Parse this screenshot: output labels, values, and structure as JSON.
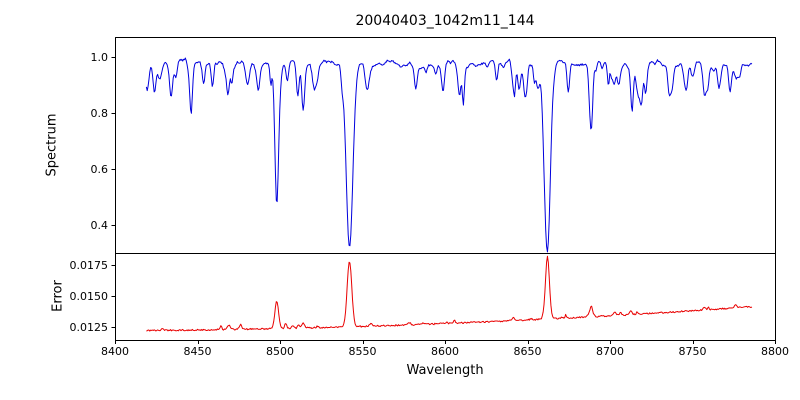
{
  "chart_data": {
    "type": "line",
    "title": "20040403_1042m11_144",
    "xlabel": "Wavelength",
    "xlim": [
      8400,
      8800
    ],
    "x_ticks": [
      {
        "value": 8400,
        "label": "8400"
      },
      {
        "value": 8450,
        "label": "8450"
      },
      {
        "value": 8500,
        "label": "8500"
      },
      {
        "value": 8550,
        "label": "8550"
      },
      {
        "value": 8600,
        "label": "8600"
      },
      {
        "value": 8650,
        "label": "8650"
      },
      {
        "value": 8700,
        "label": "8700"
      },
      {
        "value": 8750,
        "label": "8750"
      },
      {
        "value": 8800,
        "label": "8800"
      }
    ],
    "n_points": 700,
    "panels": [
      {
        "name": "spectrum",
        "ylabel": "Spectrum",
        "ylim": [
          0.3,
          1.072
        ],
        "y_ticks": [
          {
            "value": 1.0,
            "label": "1.0"
          },
          {
            "value": 0.8,
            "label": "0.8"
          },
          {
            "value": 0.6,
            "label": "0.6"
          },
          {
            "value": 0.4,
            "label": "0.4"
          }
        ],
        "color": "#0000dd",
        "x_range": [
          8419,
          8786
        ],
        "continuum": 0.978,
        "noise_fine": 0.013,
        "noise_slow": 0.012,
        "strong_lines": [
          {
            "center": 8498.0,
            "depth": 0.48,
            "width": 1.1
          },
          {
            "center": 8542.1,
            "depth": 0.665,
            "width": 2.0
          },
          {
            "center": 8662.1,
            "depth": 0.65,
            "width": 1.8
          },
          {
            "center": 8688.6,
            "depth": 0.235,
            "width": 0.9
          }
        ],
        "medium_lines": [
          {
            "center": 8434.0,
            "depth": 0.12,
            "width": 0.9
          },
          {
            "center": 8468.4,
            "depth": 0.1,
            "width": 0.9
          },
          {
            "center": 8514.1,
            "depth": 0.16,
            "width": 0.9
          },
          {
            "center": 8582.3,
            "depth": 0.09,
            "width": 0.9
          },
          {
            "center": 8598.8,
            "depth": 0.1,
            "width": 0.9
          },
          {
            "center": 8611.0,
            "depth": 0.08,
            "width": 0.8
          },
          {
            "center": 8648.5,
            "depth": 0.09,
            "width": 0.8
          },
          {
            "center": 8674.7,
            "depth": 0.11,
            "width": 0.8
          },
          {
            "center": 8713.2,
            "depth": 0.12,
            "width": 0.9
          },
          {
            "center": 8736.0,
            "depth": 0.1,
            "width": 0.9
          },
          {
            "center": 8757.0,
            "depth": 0.08,
            "width": 0.8
          },
          {
            "center": 8772.8,
            "depth": 0.09,
            "width": 0.8
          }
        ],
        "forest": {
          "count": 75,
          "depth_min": 0.01,
          "depth_max": 0.085,
          "width_min": 0.5,
          "width_max": 1.2,
          "seed": 12345
        }
      },
      {
        "name": "error",
        "ylabel": "Error",
        "ylim": [
          0.01145,
          0.01847
        ],
        "y_ticks": [
          {
            "value": 0.0175,
            "label": "0.0175"
          },
          {
            "value": 0.015,
            "label": "0.0150"
          },
          {
            "value": 0.0125,
            "label": "0.0125"
          }
        ],
        "color": "#e80000",
        "x_range": [
          8419,
          8786
        ],
        "baseline_start": 0.01222,
        "baseline_slope": 1e-06,
        "baseline_quad": 1.15e-08,
        "noise_fine": 6e-05,
        "peaks": [
          {
            "center": 8498.0,
            "height": 0.00225,
            "width": 1.1
          },
          {
            "center": 8542.1,
            "height": 0.0053,
            "width": 1.4
          },
          {
            "center": 8662.1,
            "height": 0.00505,
            "width": 1.2
          },
          {
            "center": 8688.6,
            "height": 0.00085,
            "width": 0.9
          },
          {
            "center": 8514.1,
            "height": 0.0004,
            "width": 0.8
          },
          {
            "center": 8476.0,
            "height": 0.00038,
            "width": 0.7
          }
        ],
        "spike_forest": {
          "count": 28,
          "h_min": 8e-05,
          "h_max": 0.00028,
          "w_min": 0.4,
          "w_max": 0.8
        },
        "seed": 777
      }
    ]
  }
}
